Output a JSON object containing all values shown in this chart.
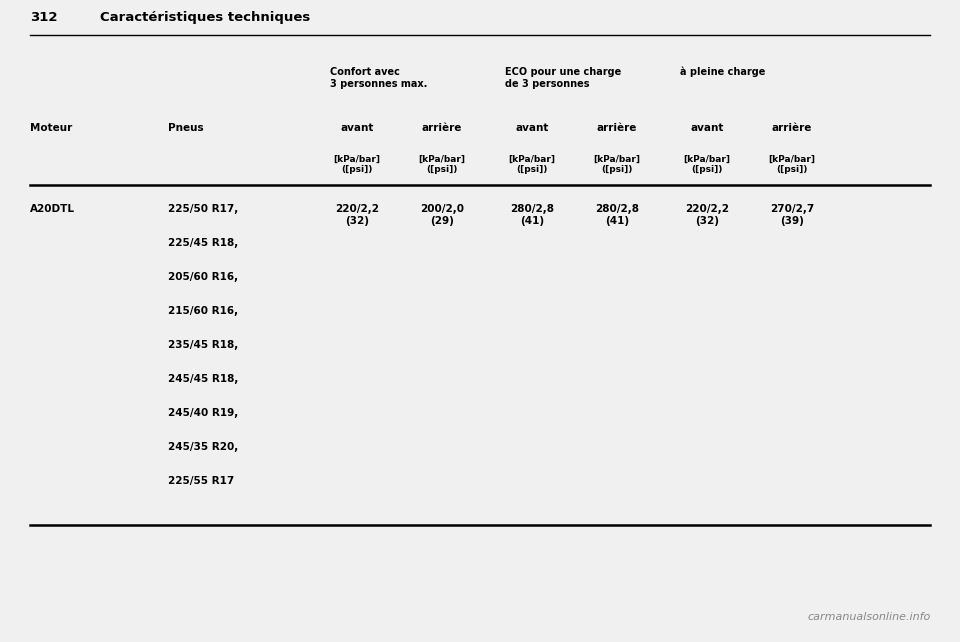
{
  "page_num": "312",
  "page_title": "Caractéristiques techniques",
  "bg_color": "#f0f0f0",
  "content_bg": "#f0f0f0",
  "bottom_bg": "#1a1a1a",
  "text_color": "#000000",
  "col_header_1": "Confort avec\n3 personnes max.",
  "col_header_2": "ECO pour une charge\nde 3 personnes",
  "col_header_3": "à pleine charge",
  "col_avant": "avant",
  "col_arriere": "arrière",
  "unit_label": "[kPa/bar]\n([psi])",
  "motor_label": "Moteur",
  "pneus_label": "Pneus",
  "motor": "A20DTL",
  "tire_sizes": [
    "225/50 R17,",
    "225/45 R18,",
    "205/60 R16,",
    "215/60 R16,",
    "235/45 R18,",
    "245/45 R18,",
    "245/40 R19,",
    "245/35 R20,",
    "225/55 R17"
  ],
  "pressures": [
    "220/2,2\n(32)",
    "200/2,0\n(29)",
    "280/2,8\n(41)",
    "280/2,8\n(41)",
    "220/2,2\n(32)",
    "270/2,7\n(39)"
  ],
  "watermark_text": "carmanualsonline.info",
  "watermark_color": "#888888",
  "line_color": "#000000",
  "title_fontsize": 9.5,
  "header_fontsize": 7,
  "subheader_fontsize": 6.5,
  "data_fontsize": 7.5,
  "watermark_fontsize": 8
}
